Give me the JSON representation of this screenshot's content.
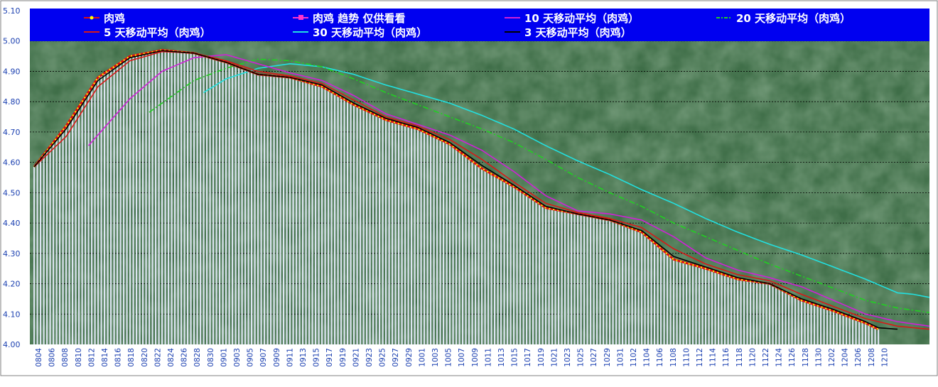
{
  "chart_data": {
    "type": "line",
    "title": "",
    "xlabel": "",
    "ylabel": "",
    "ylim": [
      4.0,
      5.1
    ],
    "y_ticks": [
      "4.00",
      "4.10",
      "4.20",
      "4.30",
      "4.40",
      "4.50",
      "4.60",
      "4.70",
      "4.80",
      "4.90",
      "5.00",
      "5.10"
    ],
    "x_tick_labels": [
      "0804",
      "0806",
      "0808",
      "0810",
      "0812",
      "0814",
      "0816",
      "0818",
      "0820",
      "0822",
      "0824",
      "0826",
      "0828",
      "0830",
      "0901",
      "0903",
      "0905",
      "0907",
      "0909",
      "0911",
      "0913",
      "0915",
      "0917",
      "0919",
      "0921",
      "0923",
      "0925",
      "0927",
      "0929",
      "1001",
      "1003",
      "1005",
      "1007",
      "1009",
      "1011",
      "1013",
      "1015",
      "1017",
      "1019",
      "1021",
      "1023",
      "1025",
      "1027",
      "1029",
      "1031",
      "1102",
      "1104",
      "1106",
      "1108",
      "1110",
      "1112",
      "1114",
      "1116",
      "1118",
      "1120",
      "1122",
      "1124",
      "1126",
      "1128",
      "1130",
      "1202",
      "1204",
      "1206",
      "1208",
      "1210"
    ],
    "grid": "horizontal-dashed",
    "legend": "top",
    "colors": {
      "plot_background": "#3f6e48",
      "legend_background": "#0000f0",
      "bars": "#dce4f0",
      "price": "#e01010",
      "price_marker": "#ffff00",
      "trend": "#ff33cc",
      "ma3": "#000000",
      "ma5": "#d81818",
      "ma10": "#d020d8",
      "ma20": "#22d022",
      "ma30": "#22e0e0"
    },
    "series": [
      {
        "name": "肉鸡",
        "key": "price",
        "points": [
          [
            0,
            4.585
          ],
          [
            10,
            4.72
          ],
          [
            20,
            4.88
          ],
          [
            30,
            4.95
          ],
          [
            40,
            4.97
          ],
          [
            50,
            4.96
          ],
          [
            60,
            4.93
          ],
          [
            70,
            4.89
          ],
          [
            80,
            4.88
          ],
          [
            90,
            4.85
          ],
          [
            100,
            4.79
          ],
          [
            110,
            4.74
          ],
          [
            120,
            4.71
          ],
          [
            130,
            4.66
          ],
          [
            140,
            4.58
          ],
          [
            150,
            4.52
          ],
          [
            160,
            4.45
          ],
          [
            170,
            4.43
          ],
          [
            180,
            4.41
          ],
          [
            190,
            4.37
          ],
          [
            200,
            4.28
          ],
          [
            210,
            4.25
          ],
          [
            220,
            4.215
          ],
          [
            230,
            4.2
          ],
          [
            240,
            4.145
          ],
          [
            250,
            4.11
          ],
          [
            260,
            4.07
          ],
          [
            264,
            4.05
          ]
        ]
      },
      {
        "name": "肉鸡  趋势  仅供看看",
        "key": "trend",
        "points": []
      },
      {
        "name": "10  天移动平均（肉鸡）",
        "key": "ma10",
        "points": [
          [
            17,
            4.655
          ],
          [
            30,
            4.81
          ],
          [
            40,
            4.9
          ],
          [
            50,
            4.945
          ],
          [
            60,
            4.955
          ],
          [
            70,
            4.925
          ],
          [
            80,
            4.895
          ],
          [
            90,
            4.87
          ],
          [
            100,
            4.82
          ],
          [
            110,
            4.76
          ],
          [
            120,
            4.725
          ],
          [
            130,
            4.69
          ],
          [
            140,
            4.64
          ],
          [
            150,
            4.57
          ],
          [
            160,
            4.49
          ],
          [
            170,
            4.44
          ],
          [
            180,
            4.43
          ],
          [
            190,
            4.41
          ],
          [
            200,
            4.355
          ],
          [
            210,
            4.285
          ],
          [
            220,
            4.245
          ],
          [
            230,
            4.22
          ],
          [
            240,
            4.19
          ],
          [
            250,
            4.145
          ],
          [
            260,
            4.1
          ],
          [
            270,
            4.075
          ],
          [
            280,
            4.06
          ]
        ]
      },
      {
        "name": "20  天移动平均（肉鸡）",
        "key": "ma20",
        "points": [
          [
            36,
            4.765
          ],
          [
            50,
            4.87
          ],
          [
            60,
            4.91
          ],
          [
            70,
            4.94
          ],
          [
            80,
            4.935
          ],
          [
            90,
            4.915
          ],
          [
            100,
            4.875
          ],
          [
            110,
            4.83
          ],
          [
            120,
            4.79
          ],
          [
            130,
            4.75
          ],
          [
            140,
            4.71
          ],
          [
            150,
            4.665
          ],
          [
            160,
            4.61
          ],
          [
            170,
            4.55
          ],
          [
            180,
            4.5
          ],
          [
            190,
            4.455
          ],
          [
            200,
            4.4
          ],
          [
            210,
            4.355
          ],
          [
            220,
            4.31
          ],
          [
            230,
            4.265
          ],
          [
            240,
            4.225
          ],
          [
            250,
            4.185
          ],
          [
            260,
            4.145
          ],
          [
            270,
            4.12
          ],
          [
            280,
            4.105
          ]
        ]
      },
      {
        "name": "5  天移动平均（肉鸡）",
        "key": "ma5",
        "points": [
          [
            0,
            4.585
          ],
          [
            10,
            4.685
          ],
          [
            20,
            4.85
          ],
          [
            30,
            4.935
          ],
          [
            40,
            4.965
          ],
          [
            50,
            4.96
          ],
          [
            60,
            4.935
          ],
          [
            70,
            4.9
          ],
          [
            80,
            4.885
          ],
          [
            90,
            4.86
          ],
          [
            100,
            4.805
          ],
          [
            110,
            4.75
          ],
          [
            120,
            4.72
          ],
          [
            130,
            4.675
          ],
          [
            140,
            4.61
          ],
          [
            150,
            4.535
          ],
          [
            160,
            4.465
          ],
          [
            170,
            4.435
          ],
          [
            180,
            4.415
          ],
          [
            190,
            4.385
          ],
          [
            200,
            4.315
          ],
          [
            210,
            4.265
          ],
          [
            220,
            4.23
          ],
          [
            230,
            4.21
          ],
          [
            240,
            4.165
          ],
          [
            250,
            4.125
          ],
          [
            260,
            4.085
          ],
          [
            270,
            4.06
          ],
          [
            280,
            4.05
          ]
        ]
      },
      {
        "name": "30  天移动平均（肉鸡）",
        "key": "ma30",
        "points": [
          [
            53,
            4.83
          ],
          [
            60,
            4.875
          ],
          [
            70,
            4.91
          ],
          [
            80,
            4.925
          ],
          [
            90,
            4.915
          ],
          [
            100,
            4.89
          ],
          [
            110,
            4.855
          ],
          [
            120,
            4.825
          ],
          [
            130,
            4.795
          ],
          [
            140,
            4.755
          ],
          [
            150,
            4.71
          ],
          [
            160,
            4.655
          ],
          [
            170,
            4.605
          ],
          [
            180,
            4.56
          ],
          [
            190,
            4.51
          ],
          [
            200,
            4.465
          ],
          [
            210,
            4.415
          ],
          [
            220,
            4.37
          ],
          [
            230,
            4.33
          ],
          [
            240,
            4.295
          ],
          [
            250,
            4.255
          ],
          [
            260,
            4.215
          ],
          [
            270,
            4.17
          ],
          [
            275,
            4.165
          ],
          [
            280,
            4.155
          ]
        ]
      },
      {
        "name": "3  天移动平均（肉鸡）",
        "key": "ma3",
        "points": [
          [
            0,
            4.585
          ],
          [
            10,
            4.71
          ],
          [
            20,
            4.87
          ],
          [
            30,
            4.945
          ],
          [
            40,
            4.968
          ],
          [
            50,
            4.96
          ],
          [
            60,
            4.93
          ],
          [
            70,
            4.89
          ],
          [
            80,
            4.88
          ],
          [
            90,
            4.855
          ],
          [
            100,
            4.795
          ],
          [
            110,
            4.745
          ],
          [
            120,
            4.715
          ],
          [
            130,
            4.665
          ],
          [
            140,
            4.59
          ],
          [
            150,
            4.525
          ],
          [
            160,
            4.455
          ],
          [
            170,
            4.43
          ],
          [
            180,
            4.41
          ],
          [
            190,
            4.375
          ],
          [
            200,
            4.29
          ],
          [
            210,
            4.255
          ],
          [
            220,
            4.22
          ],
          [
            230,
            4.2
          ],
          [
            240,
            4.15
          ],
          [
            250,
            4.115
          ],
          [
            260,
            4.075
          ],
          [
            264,
            4.055
          ],
          [
            270,
            4.05
          ]
        ]
      }
    ]
  }
}
